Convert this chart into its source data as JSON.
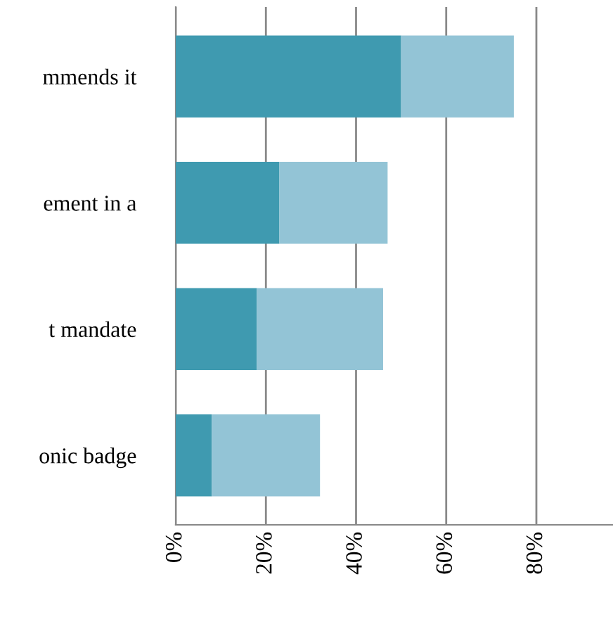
{
  "chart_data": {
    "type": "bar",
    "orientation": "horizontal",
    "stacked": true,
    "categories": [
      "mmends it",
      "ement in a",
      "t mandate",
      "onic badge"
    ],
    "series": [
      {
        "color": "#3f9ab0",
        "values": [
          50,
          23,
          18,
          8
        ]
      },
      {
        "color": "#93c4d6",
        "values": [
          25,
          24,
          28,
          24
        ]
      }
    ],
    "xlim": [
      0,
      97
    ],
    "xticks": [
      {
        "value": 0,
        "label": "0%"
      },
      {
        "value": 20,
        "label": "20%"
      },
      {
        "value": 40,
        "label": "40%"
      },
      {
        "value": 60,
        "label": "60%"
      },
      {
        "value": 80,
        "label": "80%"
      }
    ],
    "grid": "x"
  }
}
